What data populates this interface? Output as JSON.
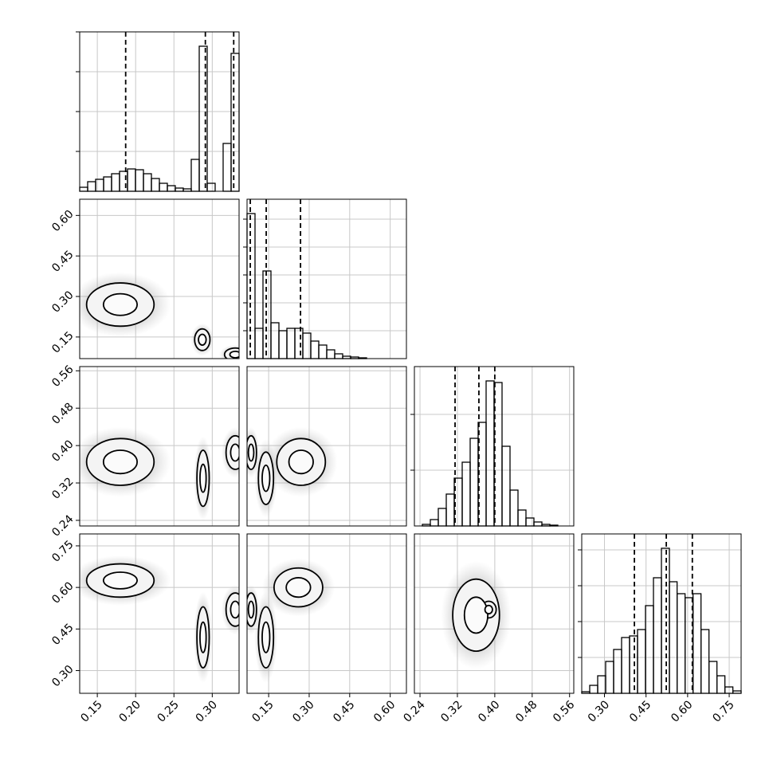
{
  "chart_data": {
    "type": "corner",
    "params": [
      {
        "lim": [
          0.127,
          0.335
        ],
        "ticks": [
          0.15,
          {
            "value": 0.2,
            "label": "0.20"
          },
          0.25,
          {
            "value": 0.3,
            "label": "0.30"
          }
        ],
        "quantiles": [
          0.187,
          0.291,
          0.328
        ],
        "hist": {
          "bins": [
            0.127,
            0.1374,
            0.1478,
            0.1582,
            0.1686,
            0.179,
            0.1894,
            0.1998,
            0.2102,
            0.2206,
            0.231,
            0.2414,
            0.2518,
            0.2622,
            0.2726,
            0.283,
            0.2934,
            0.3038,
            0.3142,
            0.3246,
            0.335
          ],
          "counts": [
            5,
            12,
            15,
            18,
            22,
            25,
            28,
            27,
            22,
            16,
            10,
            7,
            4,
            3,
            40,
            182,
            10,
            0,
            60,
            173
          ],
          "ylim": [
            0,
            200
          ],
          "yticks": [
            50,
            100,
            150,
            200
          ]
        }
      },
      {
        "lim": [
          0.07,
          0.66
        ],
        "ticks": [
          0.15,
          {
            "value": 0.3,
            "label": "0.30"
          },
          0.45,
          {
            "value": 0.6,
            "label": "0.60"
          }
        ],
        "quantiles": [
          0.082,
          0.141,
          0.268
        ],
        "hist": {
          "bins": [
            0.07,
            0.0995,
            0.129,
            0.1585,
            0.188,
            0.2175,
            0.247,
            0.2765,
            0.306,
            0.3355,
            0.365,
            0.3945,
            0.424,
            0.4535,
            0.483,
            0.5125,
            0.542,
            0.5715,
            0.601,
            0.6305,
            0.66
          ],
          "counts": [
            182,
            38,
            110,
            45,
            35,
            38,
            38,
            32,
            22,
            17,
            11,
            6,
            3,
            2,
            1,
            0,
            0,
            0,
            0,
            0
          ],
          "ylim": [
            0,
            200
          ],
          "yticks": [
            35,
            70,
            105,
            140,
            175
          ]
        }
      },
      {
        "lim": [
          0.228,
          0.569
        ],
        "ticks": [
          0.24,
          0.32,
          {
            "value": 0.4,
            "label": "0.40"
          },
          0.48,
          0.56
        ],
        "quantiles": [
          0.315,
          0.366,
          0.4
        ],
        "hist": {
          "bins": [
            0.228,
            0.24505,
            0.2621,
            0.27915,
            0.2962,
            0.31325,
            0.3303,
            0.34735,
            0.3644,
            0.38145,
            0.3985,
            0.41555,
            0.4326,
            0.44965,
            0.4667,
            0.48375,
            0.5008,
            0.51785,
            0.5349,
            0.55195,
            0.569
          ],
          "counts": [
            0,
            2,
            8,
            22,
            40,
            60,
            80,
            110,
            130,
            182,
            180,
            100,
            45,
            20,
            10,
            5,
            2,
            1,
            0,
            0
          ],
          "ylim": [
            0,
            200
          ],
          "yticks": [
            70,
            140
          ]
        }
      },
      {
        "lim": [
          0.218,
          0.793
        ],
        "ticks": [
          {
            "value": 0.3,
            "label": "0.30"
          },
          0.45,
          {
            "value": 0.6,
            "label": "0.60"
          },
          0.75
        ],
        "quantiles": [
          0.408,
          0.523,
          0.617
        ],
        "hist": {
          "bins": [
            0.218,
            0.24675,
            0.2755,
            0.30425,
            0.333,
            0.36175,
            0.3905,
            0.41925,
            0.448,
            0.47675,
            0.5055,
            0.53425,
            0.562,
            0.59075,
            0.6195,
            0.64825,
            0.677,
            0.70575,
            0.7345,
            0.76325,
            0.793
          ],
          "counts": [
            2,
            10,
            22,
            40,
            55,
            70,
            72,
            80,
            110,
            145,
            182,
            140,
            125,
            120,
            125,
            80,
            40,
            22,
            8,
            3
          ],
          "ylim": [
            0,
            200
          ],
          "yticks": [
            45,
            90,
            135,
            180
          ]
        }
      }
    ],
    "pairs": [
      {
        "x_param": 0,
        "y_param": 1,
        "clusters": [
          {
            "x": 0.18,
            "y": 0.27,
            "sx": 0.022,
            "sy": 0.04
          },
          {
            "x": 0.287,
            "y": 0.14,
            "sx": 0.005,
            "sy": 0.02
          },
          {
            "x": 0.33,
            "y": 0.085,
            "sx": 0.007,
            "sy": 0.012
          }
        ]
      },
      {
        "x_param": 0,
        "y_param": 2,
        "clusters": [
          {
            "x": 0.18,
            "y": 0.365,
            "sx": 0.022,
            "sy": 0.025
          },
          {
            "x": 0.288,
            "y": 0.33,
            "sx": 0.004,
            "sy": 0.03
          },
          {
            "x": 0.33,
            "y": 0.385,
            "sx": 0.006,
            "sy": 0.018
          }
        ]
      },
      {
        "x_param": 1,
        "y_param": 2,
        "clusters": [
          {
            "x": 0.27,
            "y": 0.365,
            "sx": 0.045,
            "sy": 0.025
          },
          {
            "x": 0.14,
            "y": 0.33,
            "sx": 0.014,
            "sy": 0.028
          },
          {
            "x": 0.085,
            "y": 0.385,
            "sx": 0.01,
            "sy": 0.018
          }
        ]
      },
      {
        "x_param": 0,
        "y_param": 3,
        "clusters": [
          {
            "x": 0.18,
            "y": 0.625,
            "sx": 0.022,
            "sy": 0.03
          },
          {
            "x": 0.288,
            "y": 0.42,
            "sx": 0.004,
            "sy": 0.055
          },
          {
            "x": 0.33,
            "y": 0.52,
            "sx": 0.006,
            "sy": 0.03
          }
        ]
      },
      {
        "x_param": 1,
        "y_param": 3,
        "clusters": [
          {
            "x": 0.26,
            "y": 0.6,
            "sx": 0.045,
            "sy": 0.035
          },
          {
            "x": 0.14,
            "y": 0.42,
            "sx": 0.014,
            "sy": 0.055
          },
          {
            "x": 0.085,
            "y": 0.52,
            "sx": 0.01,
            "sy": 0.03
          }
        ]
      },
      {
        "x_param": 2,
        "y_param": 3,
        "clusters": [
          {
            "x": 0.36,
            "y": 0.5,
            "sx": 0.025,
            "sy": 0.065
          },
          {
            "x": 0.387,
            "y": 0.52,
            "sx": 0.008,
            "sy": 0.015
          }
        ]
      }
    ],
    "grid": true,
    "color": "#000000"
  }
}
